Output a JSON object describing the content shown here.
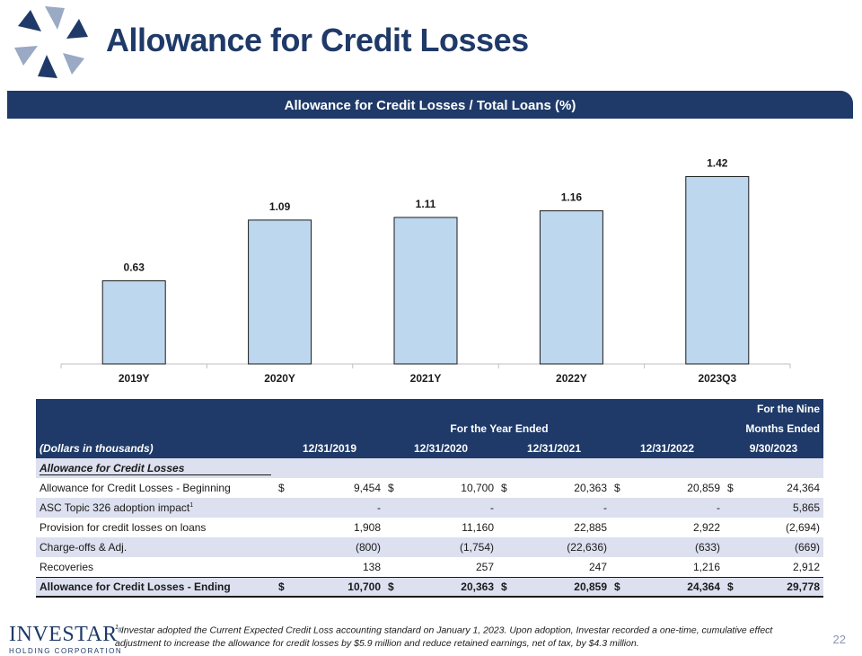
{
  "title": "Allowance for Credit Losses",
  "banner": "Allowance for Credit Losses / Total Loans (%)",
  "chart_data": {
    "type": "bar",
    "title": "Allowance for Credit Losses / Total Loans (%)",
    "categories": [
      "2019Y",
      "2020Y",
      "2021Y",
      "2022Y",
      "2023Q3"
    ],
    "values": [
      0.63,
      1.09,
      1.11,
      1.16,
      1.42
    ],
    "labels": [
      "0.63",
      "1.09",
      "1.11",
      "1.16",
      "1.42"
    ],
    "ylim": [
      0,
      1.6
    ],
    "grid": false,
    "bar_color": "#bdd7ee"
  },
  "table": {
    "nine_months_line1": "For the Nine",
    "nine_months_line2": "Months Ended",
    "year_ended": "For the Year Ended",
    "units": "(Dollars in thousands)",
    "columns": [
      "12/31/2019",
      "12/31/2020",
      "12/31/2021",
      "12/31/2022",
      "9/30/2023"
    ],
    "section": "Allowance for Credit Losses",
    "rows": [
      {
        "label": "Allowance for Credit Losses - Beginning",
        "sup": "",
        "dollar": true,
        "values": [
          "9,454",
          "10,700",
          "20,363",
          "20,859",
          "24,364"
        ]
      },
      {
        "label": "ASC Topic 326 adoption impact",
        "sup": "1",
        "dollar": false,
        "values": [
          "-",
          "-",
          "-",
          "-",
          "5,865"
        ]
      },
      {
        "label": "Provision for credit losses on loans",
        "sup": "",
        "dollar": false,
        "values": [
          "1,908",
          "11,160",
          "22,885",
          "2,922",
          "(2,694)"
        ]
      },
      {
        "label": "Charge-offs & Adj.",
        "sup": "",
        "dollar": false,
        "values": [
          "(800)",
          "(1,754)",
          "(22,636)",
          "(633)",
          "(669)"
        ]
      },
      {
        "label": "Recoveries",
        "sup": "",
        "dollar": false,
        "values": [
          "138",
          "257",
          "247",
          "1,216",
          "2,912"
        ]
      },
      {
        "label": "Allowance for Credit Losses - Ending",
        "sup": "",
        "dollar": true,
        "values": [
          "10,700",
          "20,363",
          "20,859",
          "24,364",
          "29,778"
        ]
      }
    ],
    "dollar_sign": "$"
  },
  "footer": {
    "logo_name": "INVESTAR",
    "logo_reg": "®",
    "logo_sub": "HOLDING CORPORATION",
    "footnote_mark": "1",
    "footnote": "Investar adopted the Current Expected Credit Loss accounting standard on January 1, 2023. Upon adoption, Investar recorded a one-time, cumulative effect adjustment to increase the allowance for credit losses by $5.9 million and reduce retained earnings, net of tax, by $4.3 million.",
    "page_number": "22"
  }
}
